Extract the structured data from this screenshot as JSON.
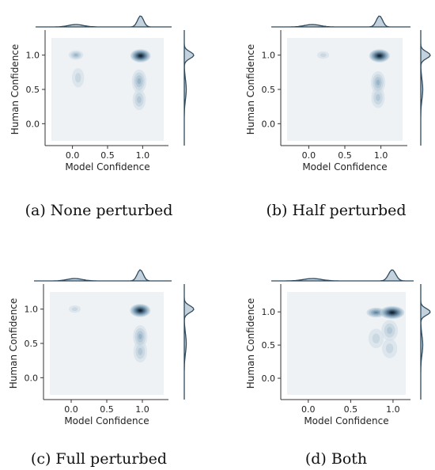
{
  "chart_data": [
    {
      "type": "kde-joint",
      "caption": "(a) None perturbed",
      "xlabel": "Model Confidence",
      "ylabel": "Human Confidence",
      "xticks": [
        0.0,
        0.5,
        1.0
      ],
      "yticks": [
        0.0,
        0.5,
        1.0
      ],
      "xlim": [
        -0.3,
        1.3
      ],
      "ylim": [
        -0.25,
        1.25
      ],
      "density_peaks": [
        {
          "x": 0.97,
          "y": 0.99,
          "level": 1.0
        },
        {
          "x": 0.05,
          "y": 1.0,
          "level": 0.45
        },
        {
          "x": 0.95,
          "y": 0.62,
          "level": 0.45
        },
        {
          "x": 0.95,
          "y": 0.35,
          "level": 0.3
        },
        {
          "x": 0.08,
          "y": 0.67,
          "level": 0.2
        }
      ]
    },
    {
      "type": "kde-joint",
      "caption": "(b) Half perturbed",
      "xlabel": "Model Confidence",
      "ylabel": "Human Confidence",
      "xticks": [
        0.0,
        0.5,
        1.0
      ],
      "yticks": [
        0.0,
        0.5,
        1.0
      ],
      "xlim": [
        -0.3,
        1.3
      ],
      "ylim": [
        -0.25,
        1.25
      ],
      "density_peaks": [
        {
          "x": 0.98,
          "y": 0.99,
          "level": 1.0
        },
        {
          "x": 0.96,
          "y": 0.6,
          "level": 0.4
        },
        {
          "x": 0.96,
          "y": 0.38,
          "level": 0.3
        },
        {
          "x": 0.2,
          "y": 1.0,
          "level": 0.15
        }
      ]
    },
    {
      "type": "kde-joint",
      "caption": "(c) Full perturbed",
      "xlabel": "Model Confidence",
      "ylabel": "Human Confidence",
      "xticks": [
        0.0,
        0.5,
        1.0
      ],
      "yticks": [
        0.0,
        0.5,
        1.0
      ],
      "xlim": [
        -0.3,
        1.3
      ],
      "ylim": [
        -0.25,
        1.25
      ],
      "density_peaks": [
        {
          "x": 0.97,
          "y": 0.98,
          "level": 1.0
        },
        {
          "x": 0.97,
          "y": 0.6,
          "level": 0.4
        },
        {
          "x": 0.97,
          "y": 0.38,
          "level": 0.35
        },
        {
          "x": 0.05,
          "y": 1.0,
          "level": 0.15
        }
      ]
    },
    {
      "type": "kde-joint",
      "caption": "(d) Both",
      "xlabel": "Model Confidence",
      "ylabel": "Human Confidence",
      "xticks": [
        0.0,
        0.5,
        1.0
      ],
      "yticks": [
        0.0,
        0.5,
        1.0
      ],
      "xlim": [
        -0.25,
        1.15
      ],
      "ylim": [
        -0.25,
        1.3
      ],
      "density_peaks": [
        {
          "x": 0.99,
          "y": 0.99,
          "level": 1.0
        },
        {
          "x": 0.8,
          "y": 0.99,
          "level": 0.55
        },
        {
          "x": 0.96,
          "y": 0.72,
          "level": 0.35
        },
        {
          "x": 0.8,
          "y": 0.6,
          "level": 0.25
        },
        {
          "x": 0.96,
          "y": 0.45,
          "level": 0.25
        }
      ]
    }
  ]
}
